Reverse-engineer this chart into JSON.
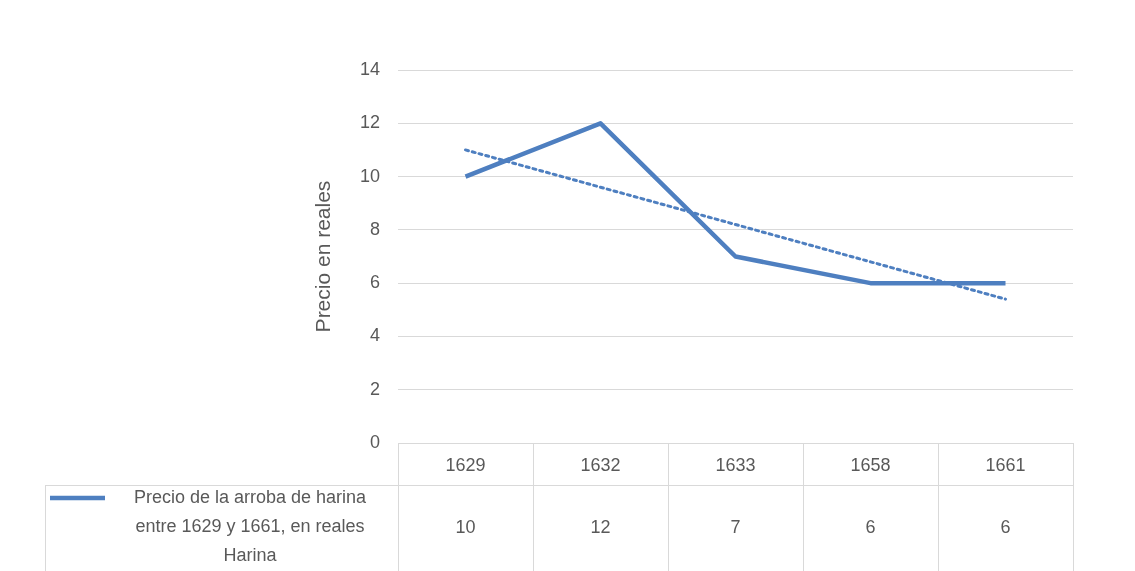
{
  "chart_data": {
    "type": "line",
    "ylabel": "Precio en reales",
    "categories": [
      "1629",
      "1632",
      "1633",
      "1658",
      "1661"
    ],
    "series": [
      {
        "name": "Precio de la arroba de harina entre 1629 y 1661, en reales Harina",
        "color": "#4e7fc0",
        "values": [
          10,
          12,
          7,
          6,
          6
        ],
        "value_labels": [
          "10",
          "12",
          "7",
          "6",
          "6"
        ]
      },
      {
        "type": "line",
        "color": "#4e7fc0",
        "line_style": "dotted",
        "values": [
          11,
          9.6,
          8.2,
          6.8,
          5.4
        ]
      }
    ],
    "ylim": [
      0,
      14
    ],
    "yticks": [
      0,
      2,
      4,
      6,
      8,
      10,
      12,
      14
    ],
    "grid": "y",
    "legend": "bottom",
    "marker": "none"
  }
}
